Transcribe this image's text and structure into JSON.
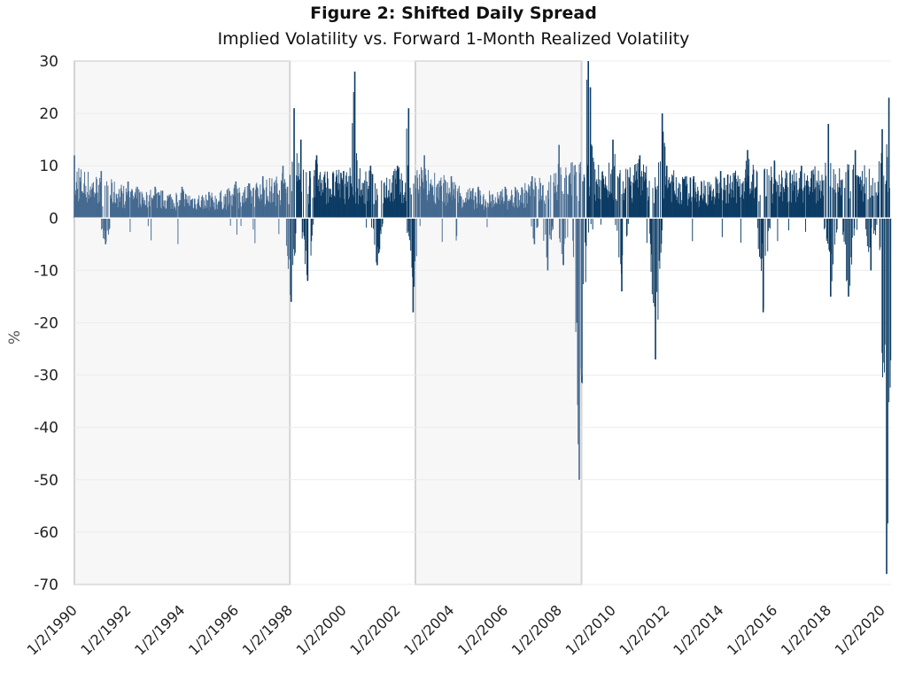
{
  "chart_data": {
    "type": "bar",
    "title": "Figure 2: Shifted Daily Spread",
    "subtitle": "Implied Volatility vs. Forward 1-Month Realized Volatility",
    "xlabel": "",
    "ylabel": "%",
    "ylim": [
      -70,
      30
    ],
    "yticks": [
      30,
      20,
      10,
      0,
      -10,
      -20,
      -30,
      -40,
      -50,
      -60,
      -70
    ],
    "xlim": [
      "1/2/1990",
      "4/30/2020"
    ],
    "xtick_labels": [
      "1/2/1990",
      "1/2/1992",
      "1/2/1994",
      "1/2/1996",
      "1/2/1998",
      "1/2/2000",
      "1/2/2002",
      "1/2/2004",
      "1/2/2006",
      "1/2/2008",
      "1/2/2010",
      "1/2/2012",
      "1/2/2014",
      "1/2/2016",
      "1/2/2018",
      "1/2/2020"
    ],
    "grid": true,
    "colors": {
      "bars": "#0b3a63",
      "shaded_bars": "#44698f",
      "shade_fill": "#f7f7f8",
      "shade_border": "#d4d4d4",
      "grid": "#ececec"
    },
    "shaded_periods": [
      {
        "start": "1/2/1990",
        "end": "1/2/1998"
      },
      {
        "start": "9/1/2002",
        "end": "11/1/2008"
      }
    ],
    "series": [
      {
        "values": [
          [
            "1/2/1990",
            12
          ],
          [
            "1/1/1991",
            9
          ],
          [
            "3/1/1991",
            -5
          ],
          [
            "1/1/1992",
            7
          ],
          [
            "1/1/1993",
            6
          ],
          [
            "1/1/1994",
            6
          ],
          [
            "1/1/1995",
            5
          ],
          [
            "1/1/1996",
            7
          ],
          [
            "1/1/1997",
            8
          ],
          [
            "10/1/1997",
            10
          ],
          [
            "12/1/1997",
            6
          ],
          [
            "1/20/1998",
            -16
          ],
          [
            "3/1/1998",
            21
          ],
          [
            "6/1/1998",
            15
          ],
          [
            "9/1/1998",
            -12
          ],
          [
            "10/1/1998",
            9
          ],
          [
            "1/1/1999",
            12
          ],
          [
            "1/1/2000",
            9
          ],
          [
            "6/1/2000",
            28
          ],
          [
            "1/1/2001",
            10
          ],
          [
            "4/1/2001",
            -9
          ],
          [
            "1/1/2002",
            10
          ],
          [
            "6/1/2002",
            21
          ],
          [
            "8/1/2002",
            -18
          ],
          [
            "1/1/2003",
            12
          ],
          [
            "1/1/2004",
            8
          ],
          [
            "1/1/2005",
            6
          ],
          [
            "1/1/2006",
            6
          ],
          [
            "1/1/2007",
            8
          ],
          [
            "2/1/2007",
            -5
          ],
          [
            "8/1/2007",
            -10
          ],
          [
            "1/1/2008",
            14
          ],
          [
            "3/1/2008",
            -9
          ],
          [
            "9/1/2008",
            -20
          ],
          [
            "10/1/2008",
            -50
          ],
          [
            "11/1/2008",
            -30
          ],
          [
            "2/1/2009",
            30
          ],
          [
            "3/1/2009",
            25
          ],
          [
            "1/1/2010",
            15
          ],
          [
            "5/1/2010",
            -14
          ],
          [
            "1/1/2011",
            12
          ],
          [
            "8/1/2011",
            -27
          ],
          [
            "11/1/2011",
            20
          ],
          [
            "1/1/2012",
            10
          ],
          [
            "1/1/2013",
            8
          ],
          [
            "1/1/2014",
            9
          ],
          [
            "1/1/2015",
            13
          ],
          [
            "8/1/2015",
            -18
          ],
          [
            "1/1/2016",
            11
          ],
          [
            "1/1/2017",
            10
          ],
          [
            "1/1/2018",
            18
          ],
          [
            "2/1/2018",
            -15
          ],
          [
            "10/1/2018",
            -15
          ],
          [
            "1/1/2019",
            13
          ],
          [
            "8/1/2019",
            -10
          ],
          [
            "1/1/2020",
            17
          ],
          [
            "3/1/2020",
            -68
          ],
          [
            "4/1/2020",
            23
          ]
        ]
      }
    ]
  }
}
